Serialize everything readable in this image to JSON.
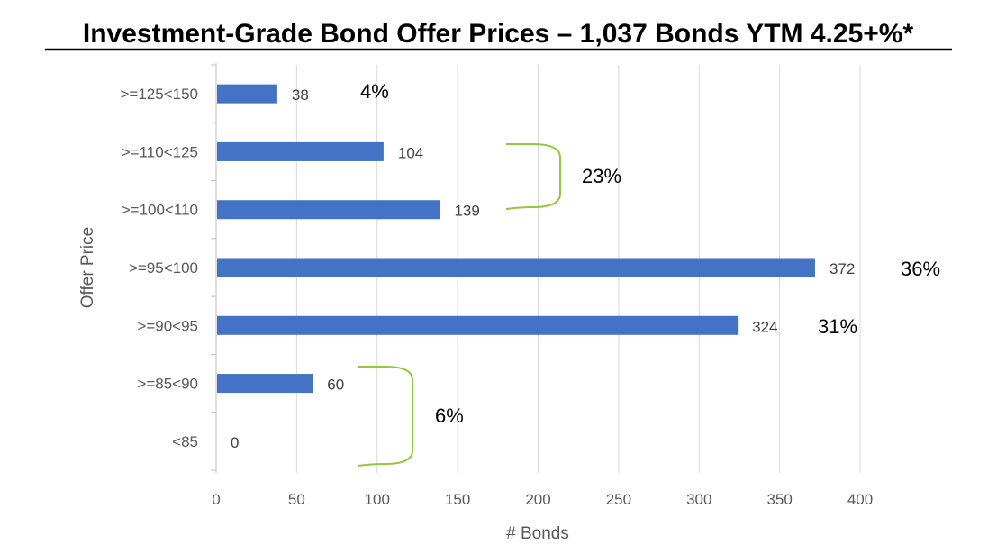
{
  "chart_data": {
    "type": "bar",
    "orientation": "horizontal",
    "title": "Investment-Grade Bond Offer Prices – 1,037 Bonds YTM 4.25+%*",
    "xlabel": "# Bonds",
    "ylabel": "Offer Price",
    "categories": [
      ">=125<150",
      ">=110<125",
      ">=100<110",
      ">=95<100",
      ">=90<95",
      ">=85<90",
      "<85"
    ],
    "values": [
      38,
      104,
      139,
      372,
      324,
      60,
      0
    ],
    "xlim": [
      0,
      400
    ],
    "xticks": [
      0,
      50,
      100,
      150,
      200,
      250,
      300,
      350,
      400
    ],
    "grid": "vertical",
    "bar_color": "#4472C4",
    "bracket_color": "#92C83E",
    "annotations": [
      {
        "text": "4%",
        "categories": [
          ">=125<150"
        ]
      },
      {
        "text": "23%",
        "categories": [
          ">=110<125",
          ">=100<110"
        ]
      },
      {
        "text": "36%",
        "categories": [
          ">=95<100"
        ]
      },
      {
        "text": "31%",
        "categories": [
          ">=90<95"
        ]
      },
      {
        "text": "6%",
        "categories": [
          ">=85<90",
          "<85"
        ]
      }
    ]
  }
}
